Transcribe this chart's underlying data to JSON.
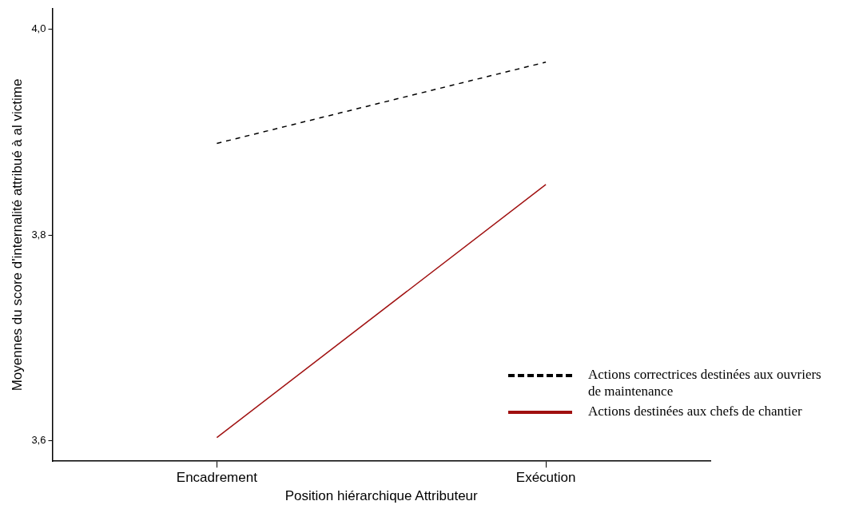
{
  "chart_data": {
    "type": "line",
    "xlabel": "Position hiérarchique Attributeur",
    "ylabel": "Moyennes du score d'internalité attribué à al victime",
    "categories": [
      "Encadrement",
      "Exécution"
    ],
    "series": [
      {
        "name": "Actions correctrices destinées aux ouvriers de maintenance",
        "color": "#000000",
        "line_style": "dashed",
        "values": [
          3.889,
          3.968
        ]
      },
      {
        "name": "Actions destinées aux chefs de chantier",
        "color": "#a01010",
        "line_style": "solid",
        "values": [
          3.603,
          3.849
        ]
      }
    ],
    "ylim": [
      3.58,
      4.02
    ],
    "yticks": [
      {
        "value": 3.6,
        "label": "3,6"
      },
      {
        "value": 3.8,
        "label": "3,8"
      },
      {
        "value": 4.0,
        "label": "4,0"
      }
    ],
    "grid": false,
    "legend": "bottom right",
    "marker": "none"
  }
}
